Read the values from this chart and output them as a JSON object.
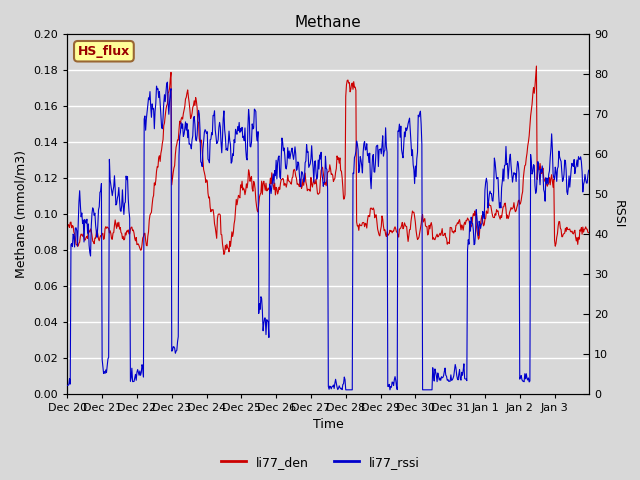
{
  "title": "Methane",
  "ylabel_left": "Methane (mmol/m3)",
  "ylabel_right": "RSSI",
  "xlabel": "Time",
  "ylim_left": [
    0.0,
    0.2
  ],
  "ylim_right": [
    0,
    90
  ],
  "yticks_left": [
    0.0,
    0.02,
    0.04,
    0.06,
    0.08,
    0.1,
    0.12,
    0.14,
    0.16,
    0.18,
    0.2
  ],
  "yticks_right": [
    0,
    10,
    20,
    30,
    40,
    50,
    60,
    70,
    80,
    90
  ],
  "color_den": "#cc0000",
  "color_rssi": "#0000cc",
  "line_width": 0.8,
  "legend_labels": [
    "li77_den",
    "li77_rssi"
  ],
  "legend_colors": [
    "#cc0000",
    "#0000cc"
  ],
  "plot_bg_color": "#d8d8d8",
  "fig_bg_color": "#d8d8d8",
  "grid_color": "#ffffff",
  "box_label": "HS_flux",
  "box_bg": "#ffff99",
  "box_border": "#996633",
  "box_text_color": "#990000",
  "title_fontsize": 11,
  "label_fontsize": 9,
  "tick_fontsize": 8,
  "legend_fontsize": 9
}
